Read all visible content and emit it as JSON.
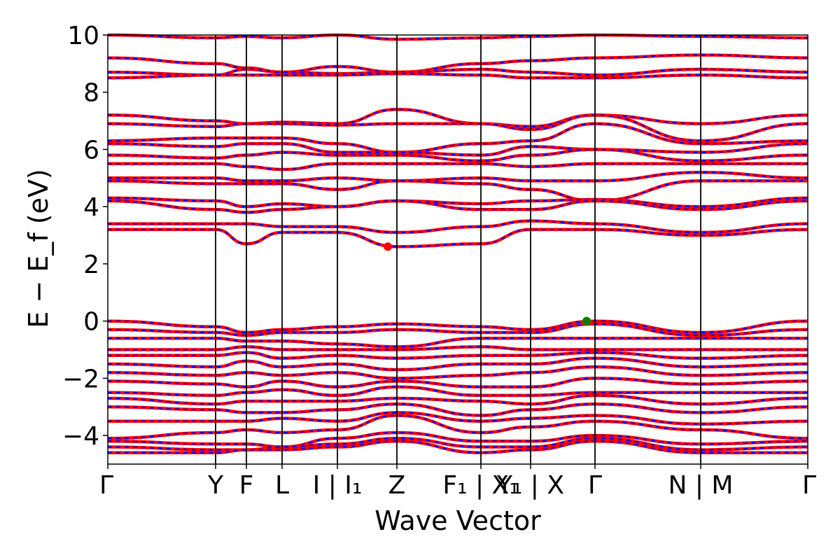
{
  "chart_data": {
    "type": "line",
    "title": "",
    "xlabel": "Wave Vector",
    "ylabel": "E − E_f (eV)",
    "ylim": [
      -5,
      10
    ],
    "y_ticks": [
      -4,
      -2,
      0,
      2,
      4,
      6,
      8,
      10
    ],
    "y_tick_labels": [
      "−4",
      "−2",
      "0",
      "2",
      "4",
      "6",
      "8",
      "10"
    ],
    "xlim": [
      0,
      100
    ],
    "kpath_labels": [
      {
        "label": "Γ",
        "x": 0
      },
      {
        "label": "Y",
        "x": 15.4
      },
      {
        "label": "F",
        "x": 19.8
      },
      {
        "label": "L",
        "x": 24.9
      },
      {
        "label": "I | I₁",
        "x": 32.8
      },
      {
        "label": "Z",
        "x": 41.3
      },
      {
        "label": "F₁ | X₁",
        "x": 53.3
      },
      {
        "label": "Y₁ | X",
        "x": 60.4
      },
      {
        "label": "Γ",
        "x": 69.6
      },
      {
        "label": "N | M",
        "x": 84.7
      },
      {
        "label": "Γ",
        "x": 100
      }
    ],
    "segment_breaks": [
      15.4,
      19.8,
      24.9,
      32.8,
      41.3,
      53.3,
      60.4,
      69.6,
      84.7
    ],
    "band_colors": {
      "solid": "#ff0000",
      "dashed": "#0000ff"
    },
    "cbm_marker": {
      "x": 40.0,
      "y": 2.6,
      "color": "#ff0000"
    },
    "vbm_marker": {
      "x": 68.4,
      "y": 0.0,
      "color": "#008000"
    },
    "series": [
      {
        "values": [
          10.2,
          9.9,
          9.95,
          9.9,
          10.0,
          9.85,
          9.9,
          9.95,
          10.0,
          9.95,
          9.9
        ]
      },
      {
        "values": [
          9.2,
          9.0,
          8.85,
          8.7,
          8.9,
          8.7,
          9.0,
          9.1,
          9.2,
          9.3,
          9.2
        ]
      },
      {
        "values": [
          8.7,
          8.6,
          8.8,
          8.7,
          8.65,
          8.7,
          8.8,
          8.7,
          8.6,
          8.8,
          8.7
        ]
      },
      {
        "values": [
          8.5,
          8.6,
          8.6,
          8.6,
          8.6,
          8.65,
          8.6,
          8.5,
          8.5,
          8.6,
          8.5
        ]
      },
      {
        "values": [
          7.2,
          7.0,
          6.9,
          6.95,
          6.9,
          7.4,
          6.9,
          6.8,
          7.2,
          6.9,
          7.2
        ]
      },
      {
        "values": [
          6.9,
          6.8,
          6.9,
          6.9,
          6.85,
          6.9,
          6.9,
          6.7,
          7.2,
          6.3,
          6.9
        ]
      },
      {
        "values": [
          6.3,
          6.4,
          6.4,
          6.4,
          6.2,
          5.9,
          6.2,
          6.3,
          6.9,
          6.2,
          6.3
        ]
      },
      {
        "values": [
          6.2,
          6.1,
          6.2,
          6.2,
          5.9,
          5.9,
          5.8,
          6.1,
          6.0,
          5.9,
          6.2
        ]
      },
      {
        "values": [
          5.8,
          5.7,
          5.8,
          5.9,
          5.8,
          5.8,
          5.6,
          5.8,
          6.0,
          5.6,
          5.8
        ]
      },
      {
        "values": [
          5.5,
          5.5,
          5.4,
          5.3,
          5.5,
          5.5,
          5.5,
          5.4,
          5.5,
          5.5,
          5.5
        ]
      },
      {
        "values": [
          5.0,
          5.0,
          4.9,
          4.9,
          5.0,
          4.9,
          5.0,
          4.9,
          4.9,
          5.2,
          5.0
        ]
      },
      {
        "values": [
          4.9,
          4.8,
          4.8,
          4.8,
          4.6,
          4.9,
          4.8,
          4.6,
          4.2,
          4.9,
          4.9
        ]
      },
      {
        "values": [
          4.3,
          4.2,
          4.0,
          4.1,
          4.0,
          4.2,
          4.1,
          4.2,
          4.25,
          4.0,
          4.3
        ]
      },
      {
        "values": [
          4.2,
          3.9,
          3.8,
          3.9,
          4.0,
          4.2,
          3.9,
          3.9,
          4.2,
          3.9,
          4.2
        ]
      },
      {
        "values": [
          3.4,
          3.4,
          3.4,
          3.3,
          3.3,
          3.1,
          3.3,
          3.5,
          3.4,
          3.1,
          3.4
        ]
      },
      {
        "values": [
          3.2,
          3.2,
          2.7,
          3.1,
          3.1,
          2.6,
          2.7,
          3.2,
          3.2,
          3.0,
          3.2
        ]
      },
      {
        "values": [
          0.0,
          -0.2,
          -0.4,
          -0.3,
          -0.2,
          -0.1,
          -0.2,
          -0.3,
          0.0,
          -0.4,
          0.0
        ]
      },
      {
        "values": [
          -0.3,
          -0.4,
          -0.5,
          -0.4,
          -0.4,
          -0.3,
          -0.4,
          -0.4,
          -0.1,
          -0.5,
          -0.3
        ]
      },
      {
        "values": [
          -0.6,
          -0.6,
          -0.7,
          -0.7,
          -0.8,
          -0.9,
          -0.6,
          -0.6,
          -0.6,
          -0.6,
          -0.6
        ]
      },
      {
        "values": [
          -1.0,
          -1.0,
          -0.9,
          -1.0,
          -1.0,
          -1.0,
          -0.9,
          -1.0,
          -1.0,
          -1.0,
          -1.0
        ]
      },
      {
        "values": [
          -1.2,
          -1.2,
          -1.1,
          -1.3,
          -1.2,
          -1.3,
          -1.2,
          -1.2,
          -1.1,
          -1.3,
          -1.2
        ]
      },
      {
        "values": [
          -1.5,
          -1.6,
          -1.4,
          -1.6,
          -1.5,
          -1.7,
          -1.5,
          -1.5,
          -1.3,
          -1.6,
          -1.5
        ]
      },
      {
        "values": [
          -1.8,
          -1.9,
          -1.8,
          -1.9,
          -1.8,
          -2.0,
          -1.9,
          -1.8,
          -1.6,
          -1.9,
          -1.8
        ]
      },
      {
        "values": [
          -2.1,
          -2.2,
          -2.3,
          -2.1,
          -2.3,
          -2.1,
          -2.3,
          -2.3,
          -2.0,
          -2.2,
          -2.1
        ]
      },
      {
        "values": [
          -2.5,
          -2.6,
          -2.5,
          -2.4,
          -2.6,
          -2.3,
          -2.6,
          -2.6,
          -2.5,
          -2.5,
          -2.5
        ]
      },
      {
        "values": [
          -2.7,
          -2.9,
          -2.8,
          -2.8,
          -2.8,
          -2.7,
          -2.8,
          -2.9,
          -2.6,
          -2.9,
          -2.7
        ]
      },
      {
        "values": [
          -3.0,
          -3.1,
          -3.2,
          -3.2,
          -3.1,
          -2.9,
          -3.3,
          -3.1,
          -2.9,
          -3.2,
          -3.0
        ]
      },
      {
        "values": [
          -3.5,
          -3.5,
          -3.5,
          -3.4,
          -3.5,
          -3.2,
          -3.5,
          -3.4,
          -3.3,
          -3.6,
          -3.5
        ]
      },
      {
        "values": [
          -4.1,
          -3.9,
          -3.8,
          -3.9,
          -3.8,
          -3.3,
          -3.9,
          -3.7,
          -3.5,
          -3.8,
          -4.1
        ]
      },
      {
        "values": [
          -4.2,
          -4.3,
          -4.3,
          -4.4,
          -4.1,
          -3.9,
          -4.2,
          -4.2,
          -4.0,
          -4.3,
          -4.2
        ]
      },
      {
        "values": [
          -4.4,
          -4.5,
          -4.5,
          -4.4,
          -4.3,
          -4.1,
          -4.4,
          -4.4,
          -4.1,
          -4.5,
          -4.4
        ]
      },
      {
        "values": [
          -4.6,
          -4.6,
          -4.5,
          -4.5,
          -4.4,
          -4.2,
          -4.6,
          -4.5,
          -4.2,
          -4.6,
          -4.6
        ]
      }
    ]
  }
}
